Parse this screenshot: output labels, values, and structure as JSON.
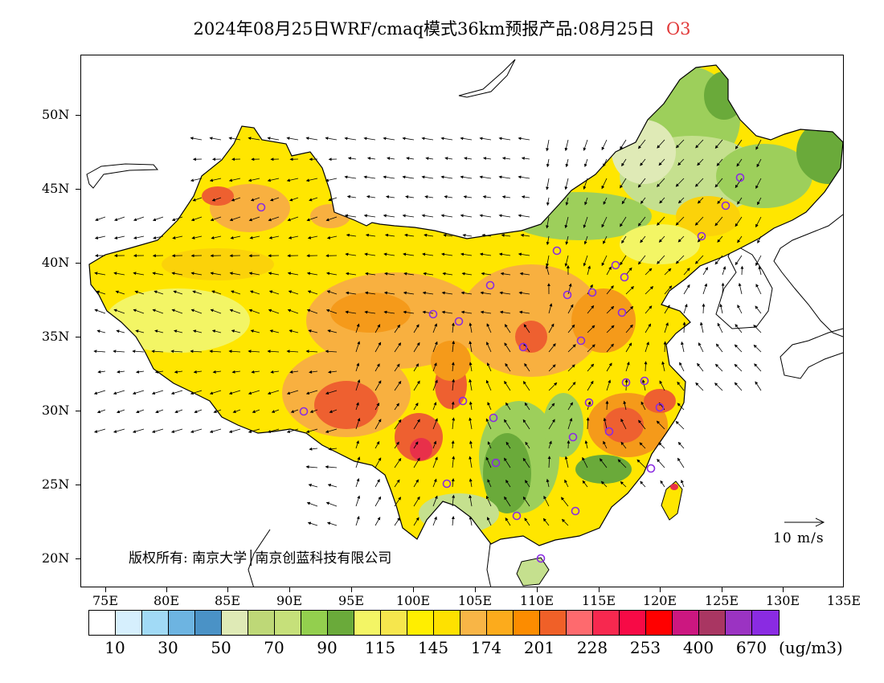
{
  "title": {
    "text": "2024年08月25日WRF/cmaq模式36km预报产品:08月25日",
    "pollutant": "O3",
    "pollutant_color": "#e23b3b"
  },
  "map": {
    "lat_labels": [
      "50N",
      "45N",
      "40N",
      "35N",
      "30N",
      "25N",
      "20N"
    ],
    "lon_labels": [
      "75E",
      "80E",
      "85E",
      "90E",
      "95E",
      "100E",
      "105E",
      "110E",
      "115E",
      "120E",
      "125E",
      "130E",
      "135E"
    ],
    "copyright": "版权所有: 南京大学│南京创蓝科技有限公司",
    "wind_scale_label": "10 m/s",
    "fill_colors": {
      "green_dark": "#6aaa3a",
      "green": "#9dcf5b",
      "green_light": "#c5e08e",
      "yellow_light": "#f3f565",
      "yellow": "#ffe600",
      "yellow_orange": "#fbd20a",
      "orange_light": "#f8b040",
      "orange": "#f59a1a",
      "red_orange": "#ee6030",
      "red": "#e8304a"
    },
    "marker_color": "#8a2be2"
  },
  "colorbar": {
    "colors": [
      "#ffffff",
      "#d6effd",
      "#a1daf6",
      "#6db4e1",
      "#4a92c6",
      "#dfeab6",
      "#bed877",
      "#c6e07a",
      "#93cf4e",
      "#6aaa3a",
      "#f3f565",
      "#f6e64d",
      "#ffee00",
      "#fee100",
      "#f8b546",
      "#fcab1c",
      "#fc8c00",
      "#f06028",
      "#fe6a6e",
      "#f7284f",
      "#f70a46",
      "#ff0000",
      "#cc1780",
      "#a93662",
      "#9b33c2",
      "#8a2be2"
    ],
    "labels": [
      "10",
      "30",
      "50",
      "70",
      "90",
      "115",
      "145",
      "174",
      "201",
      "228",
      "253",
      "400",
      "670"
    ],
    "unit": "(ug/m3)"
  }
}
